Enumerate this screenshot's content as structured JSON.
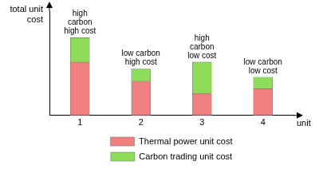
{
  "chart_data": {
    "type": "bar",
    "stacked": true,
    "categories": [
      "1",
      "2",
      "3",
      "4"
    ],
    "series": [
      {
        "name": "Thermal power unit cost",
        "color": "#f08080",
        "values": [
          92,
          59,
          38,
          46
        ]
      },
      {
        "name": "Carbon trading unit cost",
        "color": "#8fdc5a",
        "values": [
          42,
          21,
          54,
          20
        ]
      }
    ],
    "ylim": [
      0,
      180
    ],
    "x_label": "unit",
    "y_label": "total unit cost",
    "annotations": [
      [
        "high",
        "carbon",
        "high cost"
      ],
      [
        "low carbon",
        "high cost"
      ],
      [
        "high",
        "carbon",
        "low cost"
      ],
      [
        "low carbon",
        "low cost"
      ]
    ],
    "grid": false,
    "tick_labels": "x",
    "legend": "bottom"
  }
}
